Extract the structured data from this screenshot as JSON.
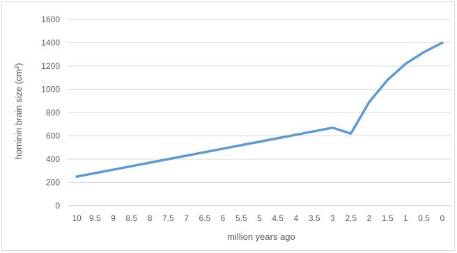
{
  "chart_data": {
    "type": "line",
    "title": "",
    "xlabel": "million years ago",
    "ylabel": "hominin brain size (cm",
    "ylabel_superscript": "3",
    "ylabel_suffix": ")",
    "x_tick_labels": [
      "10",
      "9.5",
      "9",
      "8.5",
      "8",
      "7.5",
      "7",
      "6.5",
      "6",
      "5.5",
      "5",
      "4.5",
      "4",
      "3.5",
      "3",
      "2.5",
      "2",
      "1.5",
      "1",
      "0.5",
      "0"
    ],
    "y_ticks": [
      0,
      200,
      400,
      600,
      800,
      1000,
      1200,
      1400,
      1600
    ],
    "ylim": [
      0,
      1600
    ],
    "grid": "horizontal",
    "legend": "none",
    "series": [
      {
        "color": "#5b9bd5",
        "x": [
          10,
          9.5,
          9,
          8.5,
          8,
          7.5,
          7,
          6.5,
          6,
          5.5,
          5,
          4.5,
          4,
          3.5,
          3,
          2.5,
          2,
          1.5,
          1,
          0.5,
          0
        ],
        "values": [
          250,
          280,
          310,
          340,
          370,
          400,
          430,
          460,
          490,
          520,
          550,
          580,
          610,
          640,
          670,
          620,
          890,
          1080,
          1220,
          1320,
          1400
        ]
      }
    ]
  }
}
